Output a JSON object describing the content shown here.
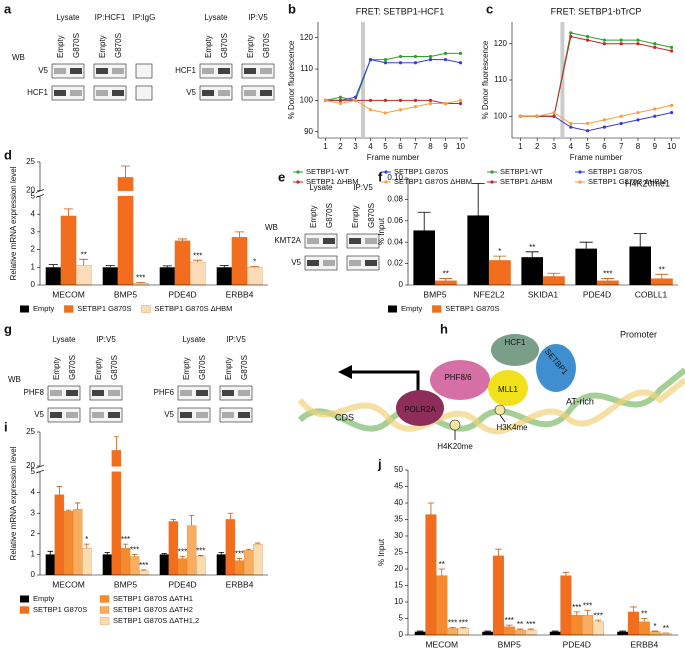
{
  "panel_labels": [
    "a",
    "b",
    "c",
    "d",
    "e",
    "f",
    "g",
    "h",
    "i",
    "j"
  ],
  "blots": [
    {
      "wb": "WB",
      "rows": [
        "V5",
        "HCF1"
      ],
      "groups": [
        {
          "label": "Lysate",
          "lanes": [
            "Empty",
            "G870S"
          ]
        },
        {
          "label": "IP:HCF1",
          "lanes": [
            "Empty",
            "G870S"
          ]
        },
        {
          "label": "IP:IgG",
          "lanes": []
        }
      ]
    },
    {
      "rows": [
        "HCF1",
        "V5"
      ],
      "groups": [
        {
          "label": "Lysate",
          "lanes": [
            "Empty",
            "G870S"
          ]
        },
        {
          "label": "IP:V5",
          "lanes": [
            "Empty",
            "G870S"
          ]
        }
      ]
    },
    {
      "wb": "WB",
      "rows": [
        "KMT2A",
        "V5"
      ],
      "groups": [
        {
          "label": "Lysate",
          "lanes": [
            "Empty",
            "G870S"
          ]
        },
        {
          "label": "IP:V5",
          "lanes": [
            "Empty",
            "G870S"
          ]
        }
      ]
    },
    {
      "wb": "WB",
      "rows": [
        "PHF8",
        "V5"
      ],
      "groups": [
        {
          "label": "Lysate",
          "lanes": [
            "Empty",
            "G870S"
          ]
        },
        {
          "label": "IP:V5",
          "lanes": [
            "Empty",
            "G870S"
          ]
        }
      ]
    },
    {
      "rows": [
        "PHF6",
        "V5"
      ],
      "groups": [
        {
          "label": "Lysate",
          "lanes": [
            "Empty",
            "G870S"
          ]
        },
        {
          "label": "IP:V5",
          "lanes": [
            "Empty",
            "G870S"
          ]
        }
      ]
    }
  ],
  "diagram": {
    "proteins": [
      "HCF1",
      "SETBP1",
      "MLL1",
      "PHF8/6",
      "POLR2A"
    ],
    "regions": [
      "CDS",
      "Promoter",
      "AT-rich"
    ],
    "marks": [
      "H4K20me",
      "H3K4me"
    ]
  },
  "chart_data": [
    {
      "type": "line",
      "title": "FRET: SETBP1-HCF1",
      "xlabel": "Frame number",
      "ylabel": "% Donor fluorescence",
      "x": [
        1,
        2,
        3,
        4,
        5,
        6,
        7,
        8,
        9,
        10
      ],
      "xlim": [
        0.5,
        10.5
      ],
      "xticks": [
        1,
        2,
        3,
        4,
        5,
        6,
        7,
        8,
        9,
        10
      ],
      "ylim": [
        88,
        125
      ],
      "yticks": [
        90,
        100,
        110,
        120
      ],
      "marker_line_x": 3.5,
      "legend": "bottom",
      "series": [
        {
          "name": "SETBP1-WT",
          "color": "#2ca02c",
          "values": [
            100,
            101,
            100,
            113,
            113,
            114,
            114,
            114,
            115,
            115
          ]
        },
        {
          "name": "SETBP1 G870S",
          "color": "#3b3bd0",
          "values": [
            100,
            100,
            101,
            113,
            112,
            112,
            112,
            113,
            113,
            112
          ]
        },
        {
          "name": "SETBP1 ΔHBM",
          "color": "#c0282c",
          "values": [
            100,
            100,
            100,
            100,
            100,
            100,
            100,
            100,
            99,
            99
          ]
        },
        {
          "name": "SETBP1 G870S ΔHBM",
          "color": "#f5a040",
          "values": [
            100,
            99,
            100,
            97,
            96,
            97,
            98,
            99,
            99,
            100
          ]
        }
      ]
    },
    {
      "type": "line",
      "title": "FRET: SETBP1-bTrCP",
      "xlabel": "Frame number",
      "ylabel": "% Donor fluorescence",
      "x": [
        1,
        2,
        3,
        4,
        5,
        6,
        7,
        8,
        9,
        10
      ],
      "xlim": [
        0.5,
        10.5
      ],
      "xticks": [
        1,
        2,
        3,
        4,
        5,
        6,
        7,
        8,
        9,
        10
      ],
      "ylim": [
        94,
        126
      ],
      "yticks": [
        100,
        110,
        120
      ],
      "marker_line_x": 3.5,
      "legend": "bottom",
      "series": [
        {
          "name": "SETBP1-WT",
          "color": "#2ca02c",
          "values": [
            100,
            100,
            100,
            123,
            122,
            121,
            121,
            121,
            120,
            119
          ]
        },
        {
          "name": "SETBP1 G870S",
          "color": "#3b3bd0",
          "values": [
            100,
            100,
            100,
            97,
            96,
            97,
            98,
            99,
            100,
            101
          ]
        },
        {
          "name": "SETBP1 ΔHBM",
          "color": "#c0282c",
          "values": [
            100,
            100,
            100,
            122,
            121,
            120,
            120,
            120,
            119,
            118
          ]
        },
        {
          "name": "SETBP1 G870S ΔHBM",
          "color": "#f5a040",
          "values": [
            100,
            100,
            101,
            98,
            98,
            99,
            100,
            101,
            102,
            103
          ]
        }
      ]
    },
    {
      "type": "bar",
      "ylabel": "Relative mRNA expression level",
      "categories": [
        "MECOM",
        "BMP5",
        "PDE4D",
        "ERBB4"
      ],
      "ylim": [
        0,
        25
      ],
      "ybreak": [
        5,
        20
      ],
      "yticks": [
        0,
        1,
        2,
        3,
        4,
        5,
        20,
        25
      ],
      "legend": "bottom",
      "series": [
        {
          "name": "Empty",
          "color": "#000000",
          "values": [
            1,
            1,
            1,
            1
          ],
          "errors": [
            0.15,
            0.1,
            0.08,
            0.1
          ]
        },
        {
          "name": "SETBP1 G870S",
          "color": "#f26d1d",
          "values": [
            3.9,
            22.3,
            2.5,
            2.7
          ],
          "errors": [
            0.4,
            2,
            0.1,
            0.3
          ]
        },
        {
          "name": "SETBP1 G870S ΔHBM",
          "color": "#fbdcb8",
          "values": [
            1.1,
            0.1,
            1.3,
            1
          ],
          "errors": [
            0.35,
            0.05,
            0.1,
            0.05
          ]
        }
      ],
      "annotations": [
        {
          "series": 2,
          "category": 0,
          "text": "**"
        },
        {
          "series": 2,
          "category": 1,
          "text": "***"
        },
        {
          "series": 2,
          "category": 2,
          "text": "***"
        },
        {
          "series": 2,
          "category": 3,
          "text": "*"
        }
      ]
    },
    {
      "type": "bar",
      "title": "H4K20me1",
      "ylabel": "% Input",
      "categories": [
        "BMP5",
        "NFE2L2",
        "SKIDA1",
        "PDE4D",
        "COBLL1"
      ],
      "ylim": [
        0,
        0.1
      ],
      "yticks": [
        0,
        0.02,
        0.04,
        0.06,
        0.08,
        {
          "value": 0.1,
          "label": "0.10"
        }
      ],
      "legend": "bottom",
      "series": [
        {
          "name": "Empty",
          "color": "#000000",
          "values": [
            0.051,
            0.065,
            0.026,
            0.034,
            0.036
          ],
          "errors": [
            0.017,
            0.03,
            0.005,
            0.006,
            0.012
          ]
        },
        {
          "name": "SETBP1 G870S",
          "color": "#f26d1d",
          "values": [
            0.004,
            0.023,
            0.008,
            0.004,
            0.006
          ],
          "errors": [
            0.002,
            0.004,
            0.003,
            0.002,
            0.004
          ]
        }
      ],
      "annotations": [
        {
          "series": 1,
          "category": 0,
          "text": "**"
        },
        {
          "series": 1,
          "category": 1,
          "text": "*"
        },
        {
          "series": 0,
          "category": 2,
          "text": "**"
        },
        {
          "series": 1,
          "category": 3,
          "text": "***"
        },
        {
          "series": 1,
          "category": 4,
          "text": "**"
        }
      ]
    },
    {
      "type": "bar",
      "ylabel": "Relative mRNA expression level",
      "categories": [
        "MECOM",
        "BMP5",
        "PDE4D",
        "ERBB4"
      ],
      "ylim": [
        0,
        25
      ],
      "ybreak": [
        5,
        20
      ],
      "yticks": [
        0,
        1,
        2,
        3,
        4,
        5,
        20,
        25
      ],
      "legend": "bottom",
      "series": [
        {
          "name": "Empty",
          "color": "#000000",
          "values": [
            1,
            1,
            1,
            1
          ],
          "errors": [
            0.15,
            0.1,
            0.05,
            0.1
          ]
        },
        {
          "name": "SETBP1 G870S",
          "color": "#f26d1d",
          "values": [
            3.9,
            22.3,
            2.6,
            2.7
          ],
          "errors": [
            0.4,
            2,
            0.1,
            0.3
          ]
        },
        {
          "name": "SETBP1 G870S ΔATH1",
          "color": "#f48c2f",
          "values": [
            3.1,
            1.3,
            0.8,
            0.7
          ],
          "errors": [
            0.05,
            0.2,
            0.1,
            0.1
          ]
        },
        {
          "name": "SETBP1 G870S ΔATH2",
          "color": "#f7ae60",
          "values": [
            3.2,
            0.9,
            2.4,
            1.2
          ],
          "errors": [
            0.3,
            0.1,
            0.5,
            0.05
          ]
        },
        {
          "name": "SETBP1 G870S ΔATH1,2",
          "color": "#fbdcb0",
          "values": [
            1.3,
            0.2,
            0.9,
            1.5
          ],
          "errors": [
            0.2,
            0.05,
            0.05,
            0.05
          ]
        }
      ],
      "annotations": [
        {
          "series": 4,
          "category": 0,
          "text": "*"
        },
        {
          "series": 2,
          "category": 1,
          "text": "***"
        },
        {
          "series": 3,
          "category": 1,
          "text": "***"
        },
        {
          "series": 4,
          "category": 1,
          "text": "***"
        },
        {
          "series": 2,
          "category": 2,
          "text": "***"
        },
        {
          "series": 4,
          "category": 2,
          "text": "***"
        },
        {
          "series": 2,
          "category": 3,
          "text": "***"
        }
      ]
    },
    {
      "type": "bar",
      "ylabel": "% Input",
      "categories": [
        "MECOM",
        "BMP5",
        "PDE4D",
        "ERBB4"
      ],
      "ylim": [
        0,
        50
      ],
      "yticks": [
        0,
        5,
        10,
        15,
        20,
        25,
        30,
        35,
        40,
        45,
        50
      ],
      "legend": "none",
      "series": [
        {
          "name": "Empty",
          "color": "#000000",
          "values": [
            1,
            1,
            1,
            1
          ],
          "errors": [
            0.2,
            0.2,
            0.2,
            0.2
          ]
        },
        {
          "name": "SETBP1 G870S",
          "color": "#f26d1d",
          "values": [
            36.5,
            24,
            18,
            7
          ],
          "errors": [
            3.5,
            2,
            1,
            1.5
          ]
        },
        {
          "name": "SETBP1 G870S ΔATH1",
          "color": "#f48c2f",
          "values": [
            18,
            2.5,
            6,
            4
          ],
          "errors": [
            2,
            0.5,
            1,
            1
          ]
        },
        {
          "name": "SETBP1 G870S ΔATH2",
          "color": "#f7ae60",
          "values": [
            2,
            1.5,
            6,
            1
          ],
          "errors": [
            0.3,
            0.3,
            1.5,
            0.2
          ]
        },
        {
          "name": "SETBP1 G870S ΔATH1,2",
          "color": "#fbdcb0",
          "values": [
            2,
            1.5,
            4,
            0.5
          ],
          "errors": [
            0.3,
            0.3,
            0.5,
            0.1
          ]
        }
      ],
      "annotations": [
        {
          "series": 2,
          "category": 0,
          "text": "**"
        },
        {
          "series": 3,
          "category": 0,
          "text": "***"
        },
        {
          "series": 4,
          "category": 0,
          "text": "***"
        },
        {
          "series": 2,
          "category": 1,
          "text": "***"
        },
        {
          "series": 3,
          "category": 1,
          "text": "**"
        },
        {
          "series": 4,
          "category": 1,
          "text": "***"
        },
        {
          "series": 2,
          "category": 2,
          "text": "***"
        },
        {
          "series": 3,
          "category": 2,
          "text": "***"
        },
        {
          "series": 4,
          "category": 2,
          "text": "***"
        },
        {
          "series": 2,
          "category": 3,
          "text": "**"
        },
        {
          "series": 3,
          "category": 3,
          "text": "*"
        },
        {
          "series": 4,
          "category": 3,
          "text": "**"
        }
      ]
    }
  ]
}
